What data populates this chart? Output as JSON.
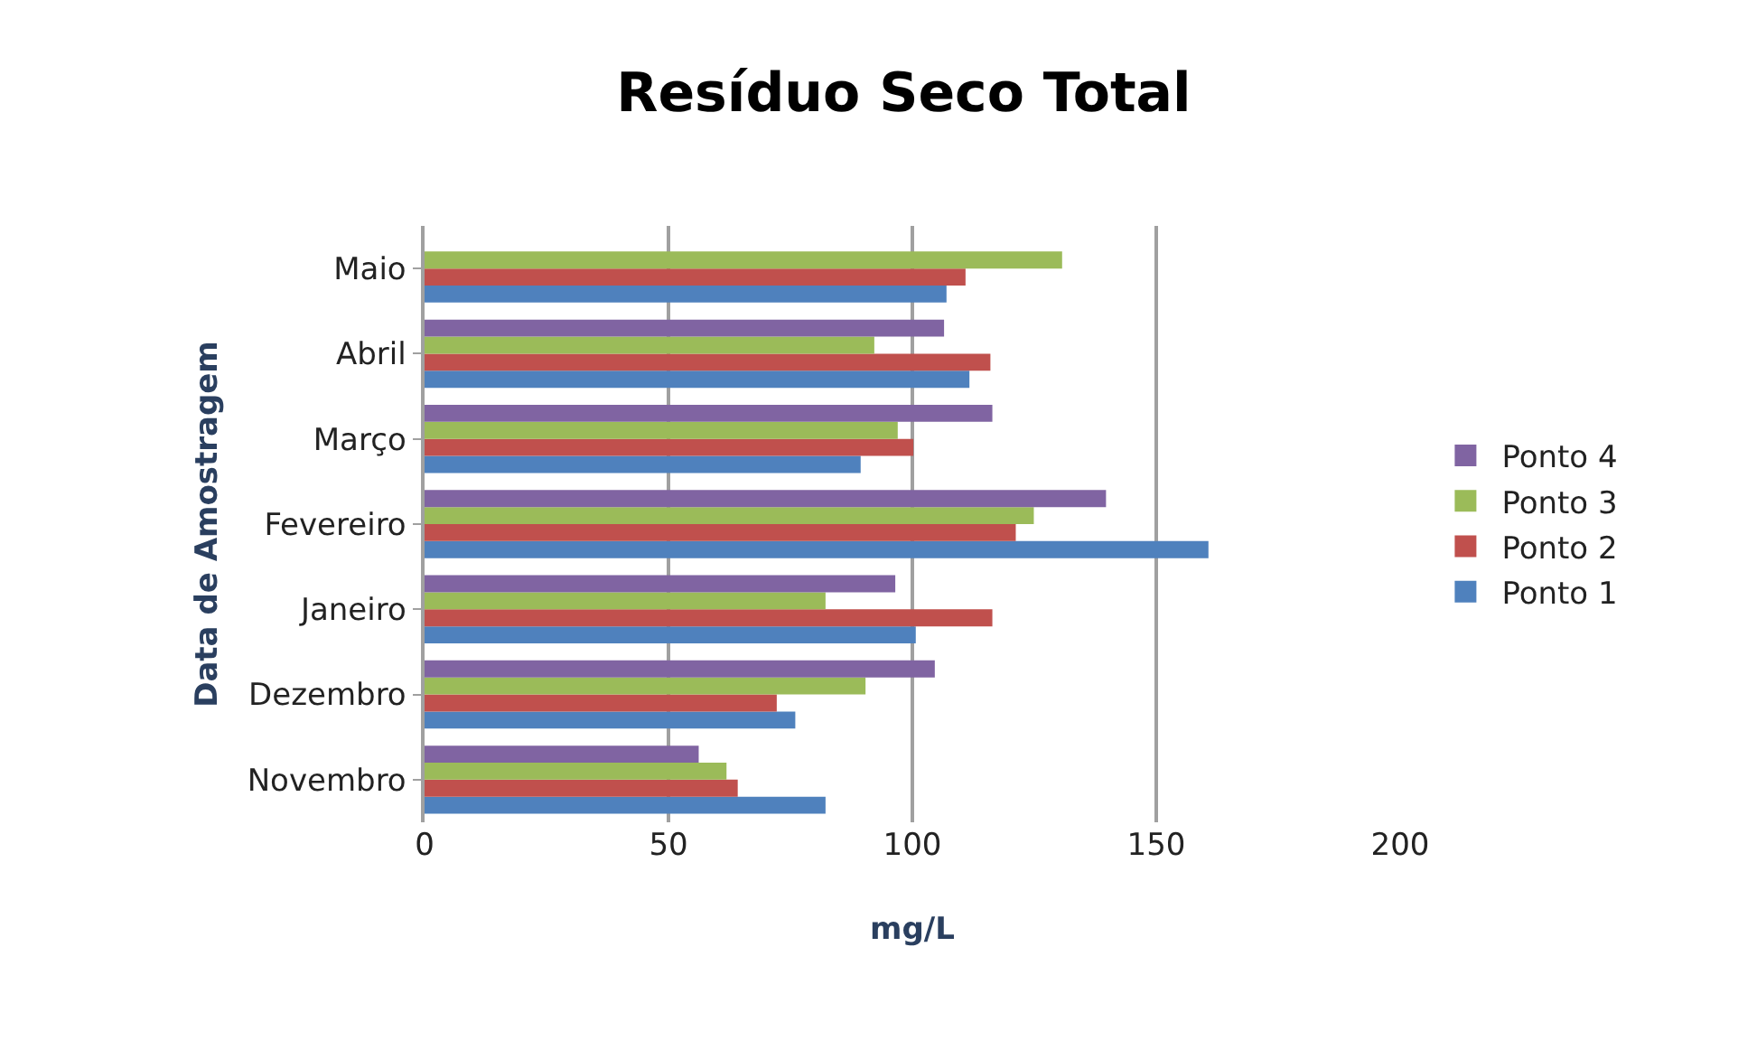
{
  "chart_data": {
    "type": "bar",
    "orientation": "horizontal",
    "title": "Resíduo Seco Total",
    "xlabel": "mg/L",
    "ylabel": "Data de Amostragem",
    "categories": [
      "Maio",
      "Abril",
      "Março",
      "Fevereiro",
      "Janeiro",
      "Dezembro",
      "Novembro"
    ],
    "series": [
      {
        "name": "Ponto 1",
        "color": "#4f81bd",
        "values": [
          107,
          111.7,
          89.4,
          160.7,
          100.7,
          76,
          82.2
        ]
      },
      {
        "name": "Ponto 2",
        "color": "#c0504d",
        "values": [
          110.9,
          116,
          100.2,
          121.2,
          116.4,
          72.2,
          64.2
        ]
      },
      {
        "name": "Ponto 3",
        "color": "#9bbb59",
        "values": [
          130.7,
          92.2,
          97,
          124.9,
          82.2,
          90.4,
          61.9
        ]
      },
      {
        "name": "Ponto 4",
        "color": "#8064a2",
        "values": [
          null,
          106.5,
          116.4,
          139.7,
          96.5,
          104.6,
          56.2
        ]
      }
    ],
    "xlim": [
      0,
      200
    ],
    "xticks": [
      0,
      50,
      100,
      150,
      200
    ],
    "grid": "x",
    "legend": "right"
  }
}
